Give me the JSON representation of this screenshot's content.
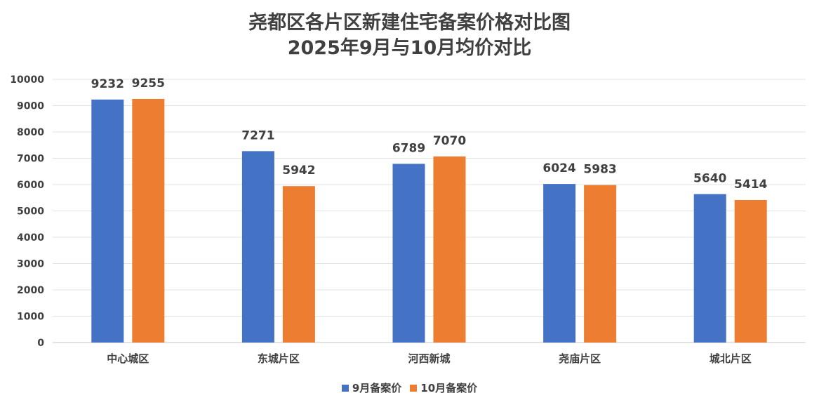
{
  "chart_data": {
    "type": "bar",
    "title": "尧都区各片区新建住宅备案价格对比图",
    "subtitle": "2025年9月与10月均价对比",
    "categories": [
      "中心城区",
      "东城片区",
      "河西新城",
      "尧庙片区",
      "城北片区"
    ],
    "series": [
      {
        "name": "9月备案价",
        "color": "#4472C4",
        "values": [
          9232,
          7271,
          6789,
          6024,
          5640
        ]
      },
      {
        "name": "10月备案价",
        "color": "#ED7D31",
        "values": [
          9255,
          5942,
          7070,
          5983,
          5414
        ]
      }
    ],
    "ylim": [
      0,
      10000
    ],
    "yticks": [
      0,
      1000,
      2000,
      3000,
      4000,
      5000,
      6000,
      7000,
      8000,
      9000,
      10000
    ],
    "grid": true,
    "legend": "bottom",
    "xlabel": "",
    "ylabel": ""
  }
}
